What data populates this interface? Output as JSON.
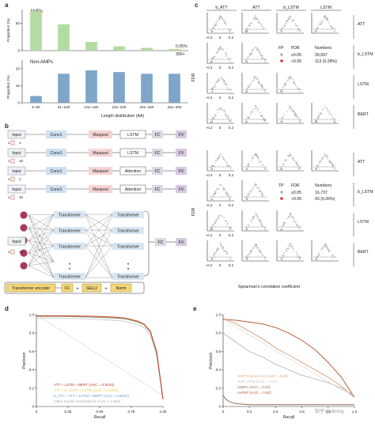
{
  "panels": {
    "a": "a",
    "b": "b",
    "c": "c",
    "d": "d",
    "e": "e"
  },
  "chart_data": [
    {
      "type": "bar",
      "panel": "a-top",
      "label": "AMPs",
      "ylabel": "Proportion (%)",
      "categories": [
        "6–50",
        "51–100",
        "101–150",
        "151–200",
        "201–250",
        "251–300"
      ],
      "values": [
        72,
        48,
        16,
        8,
        5,
        3
      ],
      "ylim": [
        0,
        75
      ],
      "yticks": [
        "0",
        "50"
      ],
      "annotations": [
        "0.05%",
        "300+"
      ],
      "color": "#b5dba3"
    },
    {
      "type": "bar",
      "panel": "a-bottom",
      "label": "Non-AMPs",
      "ylabel": "Proportion (%)",
      "xlabel": "Length distribution (AA)",
      "categories": [
        "6–50",
        "51–100",
        "101–150",
        "151–200",
        "201–250",
        "251–300"
      ],
      "values": [
        4,
        17,
        19,
        18,
        17,
        17
      ],
      "ylim": [
        0,
        25
      ],
      "yticks": [
        "0",
        "10",
        "20"
      ],
      "color": "#7fa6c9"
    },
    {
      "type": "line",
      "panel": "d",
      "xlabel": "Recall",
      "ylabel": "Precision",
      "xticks": [
        "0",
        "0.25",
        "0.50",
        "0.75",
        "1.00"
      ],
      "yticks": [
        "0",
        "0.2",
        "0.4",
        "0.6",
        "0.8",
        "1.0"
      ],
      "xlim": [
        0,
        1
      ],
      "ylim": [
        0,
        1
      ],
      "series": [
        {
          "name": "ATT + LSTM + BERT (AUC = 0.9244)",
          "color": "#c0392b",
          "x": [
            0,
            0.05,
            0.2,
            0.4,
            0.6,
            0.7,
            0.8,
            0.85,
            0.9,
            0.95,
            1.0
          ],
          "y": [
            0.99,
            0.99,
            0.99,
            0.985,
            0.975,
            0.965,
            0.93,
            0.9,
            0.82,
            0.6,
            0.08
          ]
        },
        {
          "name": "ATT + b_LSTM + LSTM (AUC = 0.9243)",
          "color": "#e8c84a",
          "x": [
            0,
            0.05,
            0.2,
            0.4,
            0.6,
            0.7,
            0.8,
            0.85,
            0.9,
            0.95,
            1.0
          ],
          "y": [
            0.985,
            0.985,
            0.985,
            0.98,
            0.97,
            0.96,
            0.925,
            0.895,
            0.815,
            0.59,
            0.08
          ]
        },
        {
          "name": "b_ATT + ATT + LSTM + BERT (AUC = 0.9241)",
          "color": "#6a9bc3",
          "x": [
            0,
            0.05,
            0.2,
            0.4,
            0.6,
            0.7,
            0.8,
            0.85,
            0.9,
            0.95,
            1.0
          ],
          "y": [
            0.98,
            0.98,
            0.98,
            0.975,
            0.965,
            0.955,
            0.92,
            0.89,
            0.81,
            0.58,
            0.08
          ]
        },
        {
          "name": "Other model combinations (AUC < 0.924)",
          "color": "#cfcfcf",
          "x": [
            0,
            0.05,
            0.2,
            0.4,
            0.6,
            0.7,
            0.8,
            0.85,
            0.9,
            0.95,
            1.0
          ],
          "y": [
            0.96,
            0.96,
            0.96,
            0.955,
            0.94,
            0.93,
            0.89,
            0.86,
            0.78,
            0.55,
            0.08
          ]
        }
      ],
      "legend_entries": [
        {
          "label": "ATT + LSTM + BERT (AUC = 0.9244)",
          "color": "#c0392b"
        },
        {
          "label": "ATT + b_LSTM + LSTM (AUC = 0.9243)",
          "color": "#e8c84a"
        },
        {
          "label": "b_ATT + ATT + LSTM + BERT (AUC = 0.9241)",
          "color": "#6a9bc3"
        },
        {
          "label": "Other model combinations (AUC < 0.924)",
          "color": "#a8a8a8"
        }
      ]
    },
    {
      "type": "line",
      "panel": "e",
      "xlabel": "Recall",
      "ylabel": "Precision",
      "xticks": [
        "0",
        "0.2",
        "0.4",
        "0.6",
        "0.8",
        "1.0"
      ],
      "yticks": [
        "0",
        "0.2",
        "0.4",
        "0.6",
        "0.8",
        "1.0"
      ],
      "xlim": [
        0,
        1
      ],
      "ylim": [
        0,
        1
      ],
      "series": [
        {
          "name": "AMP Scanner vr2 (AUC = 0.39)",
          "color": "#d9a782",
          "x": [
            0,
            0.1,
            0.2,
            0.3,
            0.4,
            0.5,
            0.6,
            0.7,
            0.8,
            0.9,
            1.0
          ],
          "y": [
            0.96,
            0.9,
            0.82,
            0.74,
            0.64,
            0.56,
            0.48,
            0.4,
            0.32,
            0.22,
            0.1
          ]
        },
        {
          "name": "AMP_Pred (AUC = 0.37)",
          "color": "#bfbfbf",
          "x": [
            0,
            0.1,
            0.2,
            0.3,
            0.4,
            0.5,
            0.6,
            0.7,
            0.8,
            0.9,
            1.0
          ],
          "y": [
            0.8,
            0.7,
            0.6,
            0.54,
            0.46,
            0.4,
            0.34,
            0.3,
            0.26,
            0.2,
            0.12
          ]
        },
        {
          "name": "AMPH (AUC = 0.03)",
          "color": "#8c6c5c",
          "x": [
            0,
            0.02,
            0.05,
            0.1,
            0.2,
            0.4,
            0.6,
            0.8,
            1.0
          ],
          "y": [
            0.12,
            0.08,
            0.05,
            0.03,
            0.02,
            0.02,
            0.02,
            0.02,
            0.02
          ]
        },
        {
          "name": "AxPEP (AUC = 0.60)",
          "color": "#b85b3a",
          "x": [
            0,
            0.1,
            0.2,
            0.3,
            0.4,
            0.5,
            0.6,
            0.7,
            0.8,
            0.9,
            1.0
          ],
          "y": [
            0.95,
            0.94,
            0.92,
            0.9,
            0.86,
            0.8,
            0.72,
            0.62,
            0.48,
            0.32,
            0.1
          ]
        }
      ],
      "legend_entries": [
        {
          "label": "AMP Scanner vr2 (AUC = 0.39)",
          "color": "#d9a782"
        },
        {
          "label": "AMP_Pred (AUC = 0.37)",
          "color": "#bfbfbf"
        },
        {
          "label": "AMPH (AUC = 0.03)",
          "color": "#8c6c5c"
        },
        {
          "label": "AxPEP (AUC = 0.60)",
          "color": "#b85b3a"
        }
      ]
    }
  ],
  "panel_b": {
    "rows": [
      {
        "input": "Input",
        "conv": "Conv1",
        "pool": "Maxpool",
        "layer": "LSTM",
        "fc": "FC",
        "fv": "FV",
        "rep": "1",
        "dim": "1"
      },
      {
        "input": "Input",
        "conv": "Conv1",
        "pool": "Maxpool",
        "layer": "LSTM",
        "fc": "FC",
        "fv": "FV",
        "rep": "1",
        "dim": "10"
      },
      {
        "input": "Input",
        "conv": "Conv1",
        "pool": "Maxpool",
        "layer": "Attention",
        "fc": "FC",
        "fv": "FV",
        "rep": "1",
        "dim": "1"
      },
      {
        "input": "Input",
        "conv": "Conv1",
        "pool": "Maxpool",
        "layer": "Attention",
        "fc": "FC",
        "fv": "FV",
        "rep": "1",
        "dim": "10"
      }
    ],
    "transformer": {
      "input": "Input",
      "block": "Transformer",
      "fc": "FC",
      "fv": "FV",
      "rep": "1",
      "dim": "10"
    },
    "legend": {
      "encoder": "Transformer encoder",
      "plus": "+",
      "fc": "FC",
      "gelu": "GELU",
      "norm": "Norm"
    }
  },
  "panel_c": {
    "columns": [
      "b_ATT",
      "ATT",
      "b_LSTM",
      "LSTM"
    ],
    "rows_top": [
      "ATT",
      "b_LSTM",
      "LSTM",
      "BERT"
    ],
    "rows_bottom": [
      "ATT",
      "b_LSTM",
      "LSTM",
      "BERT"
    ],
    "ylabel": "FDR",
    "xlabel": "Spearman's correlation coefficient",
    "xticks": [
      "−0.4",
      "0",
      "0.2"
    ],
    "xticks_alt": [
      "−0.2",
      "0",
      "0.2"
    ],
    "xticks_alt2": [
      "−0.3",
      "0",
      "0.3"
    ],
    "legend_top": {
      "h1": "FP",
      "h2": "FDR",
      "h3": "Numbers",
      "r1_fdr": "≥0.05",
      "r1_num": "39,697",
      "r2_fdr": "<0.05",
      "r2_num": "113 (0.28%)",
      "gray": "#b3b3b3",
      "red": "#d23c2a"
    },
    "legend_bottom": {
      "h1": "TP",
      "h2": "FDR",
      "h3": "Numbers",
      "r1_fdr": "≥0.05",
      "r1_num": "16,737",
      "r2_fdr": "<0.05",
      "r2_num": "43 (0.26%)",
      "gray": "#b3b3b3",
      "red": "#d23c2a"
    }
  },
  "watermark": "知乎 @Jimmy"
}
